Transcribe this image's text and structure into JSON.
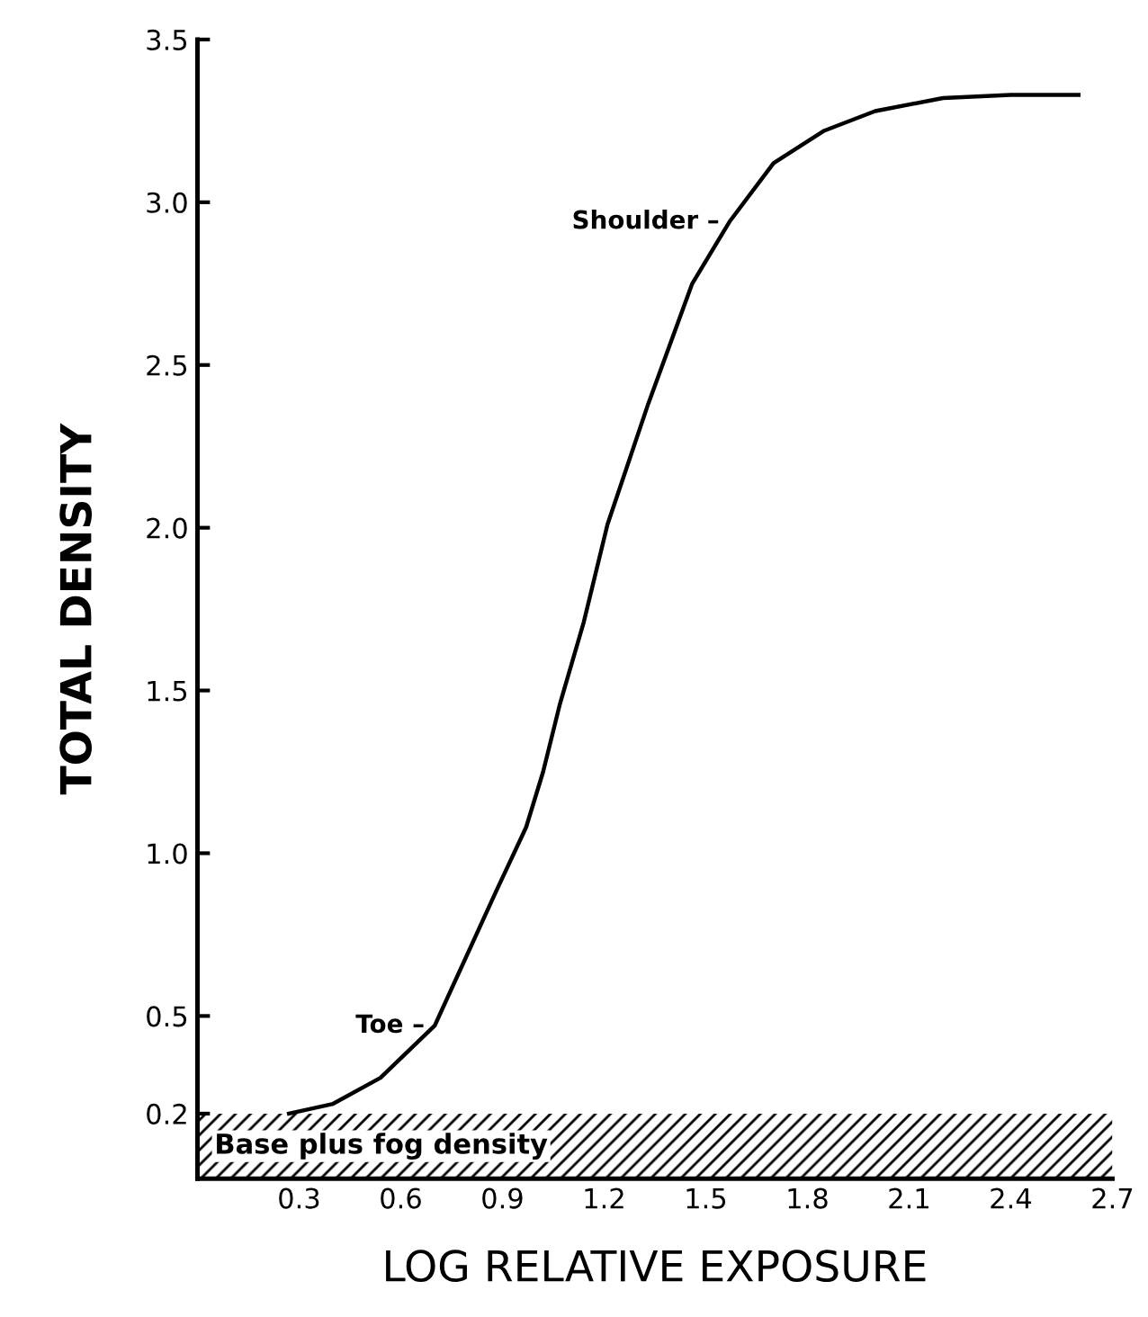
{
  "chart_data": {
    "type": "line",
    "xlabel": "LOG RELATIVE EXPOSURE",
    "ylabel": "TOTAL DENSITY",
    "x": [
      0.27,
      0.4,
      0.54,
      0.7,
      0.88,
      0.97,
      1.02,
      1.07,
      1.14,
      1.21,
      1.33,
      1.46,
      1.57,
      1.7,
      1.85,
      2.0,
      2.2,
      2.4,
      2.6
    ],
    "series": [
      {
        "color": "#000000",
        "values": [
          0.2,
          0.23,
          0.31,
          0.47,
          0.88,
          1.08,
          1.25,
          1.46,
          1.71,
          2.01,
          2.38,
          2.75,
          2.94,
          3.12,
          3.22,
          3.28,
          3.32,
          3.33,
          3.33
        ]
      }
    ],
    "xlim": [
      0,
      2.7
    ],
    "ylim": [
      0,
      3.5
    ],
    "xticks": [
      0.3,
      0.6,
      0.9,
      1.2,
      1.5,
      1.8,
      2.1,
      2.4,
      2.7
    ],
    "yticks": [
      0.2,
      0.5,
      {
        "value": 1,
        "label": "1.0"
      },
      1.5,
      {
        "value": 2,
        "label": "2.0"
      },
      2.5,
      {
        "value": 3,
        "label": "3.0"
      },
      3.5
    ],
    "bands": [
      {
        "axis": "y",
        "from": 0,
        "to": 0.2,
        "label": "Base plus fog density",
        "color": "#000000"
      }
    ],
    "annotations": [
      {
        "text": "Shoulder –",
        "x": 1.57,
        "y": 2.94
      },
      {
        "text": "Toe –",
        "x": 0.7,
        "y": 0.47
      }
    ],
    "grid": false,
    "marker": "none",
    "line_style": "solid"
  }
}
